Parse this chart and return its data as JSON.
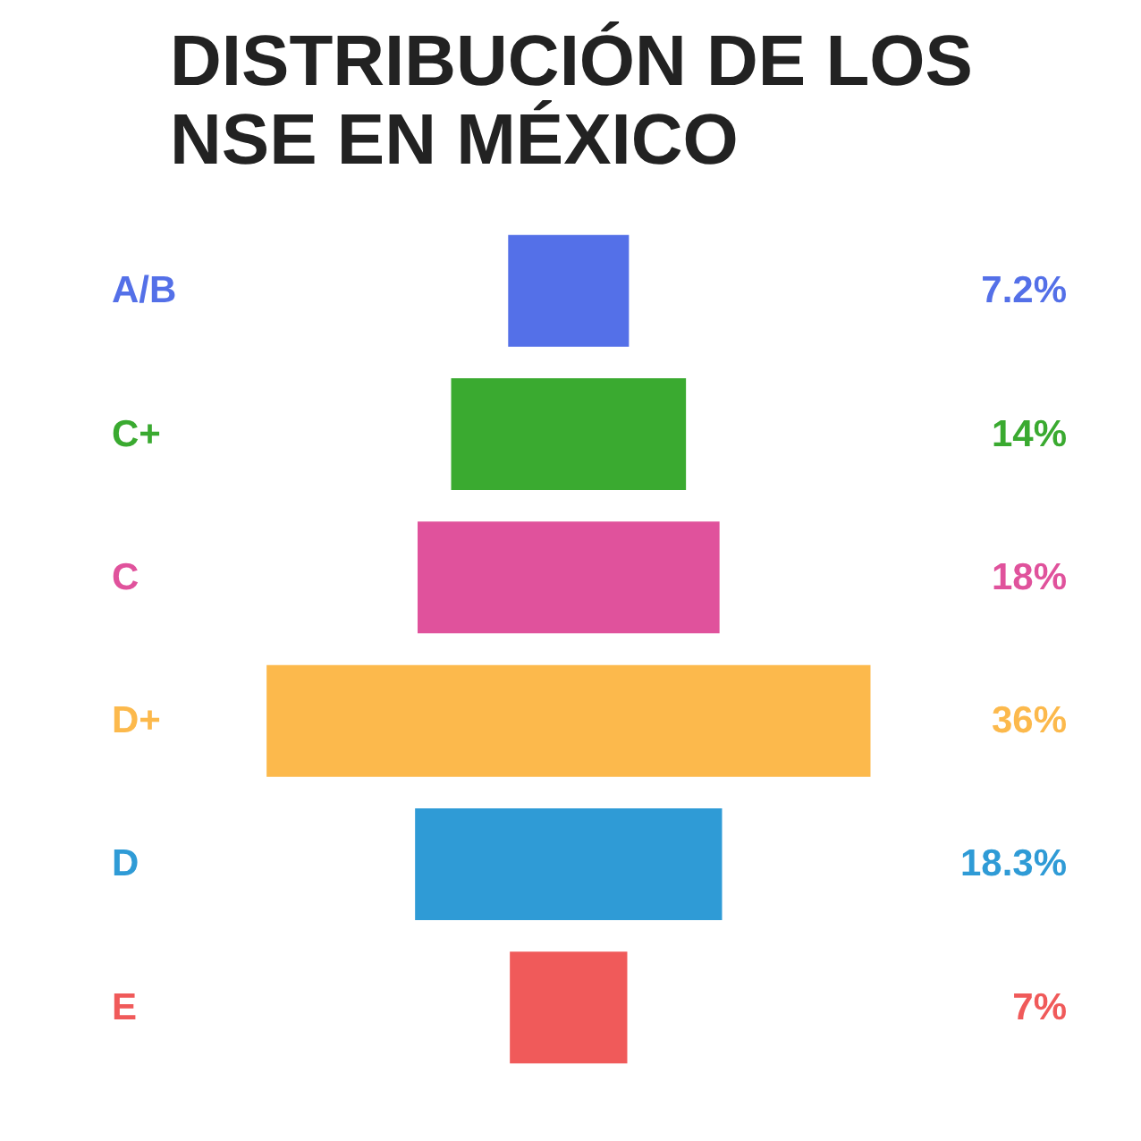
{
  "chart_data": {
    "type": "other",
    "title": "DISTRIBUCIÓN DE LOS NSE EN MÉXICO",
    "categories": [
      "A/B",
      "C+",
      "C",
      "D+",
      "D",
      "E"
    ],
    "values": [
      7.2,
      14,
      18,
      36,
      18.3,
      7
    ],
    "colors": [
      "#5470e8",
      "#3aaa30",
      "#e0529c",
      "#fcb94c",
      "#2f9bd6",
      "#f05a5a"
    ],
    "value_labels": [
      "7.2%",
      "14%",
      "18%",
      "36%",
      "18.3%",
      "7%"
    ]
  }
}
